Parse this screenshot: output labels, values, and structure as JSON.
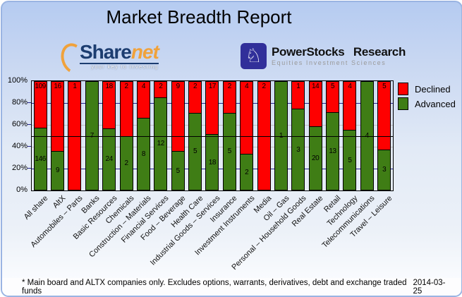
{
  "title": "Market Breadth Report",
  "logos": {
    "sharenet": {
      "text_share": "Share",
      "text_net": "net",
      "tagline": "your key to investing",
      "navy": "#1c3d70",
      "orange": "#f0a23c"
    },
    "powerstocks": {
      "title": "PowerStocks Research",
      "subtitle": "Equities Investment Sciences",
      "knight_glyph": "♘",
      "badge_color": "#312f9a"
    }
  },
  "chart_data": {
    "type": "bar",
    "stacked": true,
    "orientation": "vertical",
    "unit": "percent of issues",
    "categories": [
      "All share",
      "AltX",
      "Automobiles – Parts",
      "Banks",
      "Basic Resources",
      "Chemicals",
      "Construction – Materials",
      "Financial Services",
      "Food – Beverage",
      "Health Care",
      "Industrial Goods – Services",
      "Insurance",
      "Investment Instruments",
      "Media",
      "Oil – Gas",
      "Personal – Household Goods",
      "Real Estate",
      "Retail",
      "Technology",
      "Telecommunications",
      "Travel – Leisure"
    ],
    "series": [
      {
        "name": "Declined",
        "color": "#fe0000",
        "values": [
          109,
          16,
          1,
          0,
          18,
          2,
          4,
          2,
          9,
          2,
          17,
          2,
          4,
          2,
          0,
          1,
          14,
          5,
          4,
          0,
          5
        ]
      },
      {
        "name": "Advanced",
        "color": "#3f7d15",
        "values": [
          146,
          9,
          0,
          7,
          24,
          2,
          8,
          12,
          5,
          5,
          18,
          5,
          2,
          0,
          1,
          3,
          20,
          13,
          5,
          4,
          3
        ]
      }
    ],
    "y_axis": {
      "tick_labels": [
        "0%",
        "20%",
        "40%",
        "60%",
        "80%",
        "100%"
      ],
      "min": 0,
      "max": 100
    },
    "midline_percent": 50,
    "legend_position": "top-right",
    "grid": {
      "major_color": "#24248f",
      "minor_color": "#c0c0c0",
      "major_levels": [
        20,
        80
      ],
      "minor_levels": [
        40,
        60
      ]
    }
  },
  "footer": {
    "note": "* Main board and ALTX companies only. Excludes options, warrants, derivatives, debt and exchange traded funds",
    "date": "2014-03-25"
  }
}
